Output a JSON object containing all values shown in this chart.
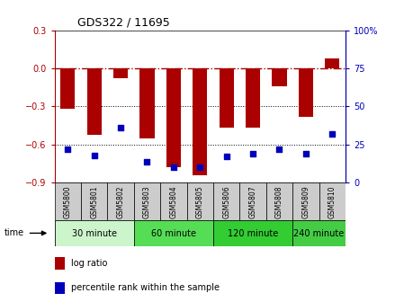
{
  "title": "GDS322 / 11695",
  "samples": [
    "GSM5800",
    "GSM5801",
    "GSM5802",
    "GSM5803",
    "GSM5804",
    "GSM5805",
    "GSM5806",
    "GSM5807",
    "GSM5808",
    "GSM5809",
    "GSM5810"
  ],
  "log_ratio": [
    -0.32,
    -0.52,
    -0.08,
    -0.55,
    -0.78,
    -0.84,
    -0.47,
    -0.47,
    -0.14,
    -0.38,
    0.08
  ],
  "percentile_rank": [
    22,
    18,
    36,
    14,
    10,
    10,
    17,
    19,
    22,
    19,
    32
  ],
  "time_groups": [
    {
      "label": "30 minute",
      "start": 0,
      "end": 2,
      "color": "#ccf5cc"
    },
    {
      "label": "60 minute",
      "start": 3,
      "end": 5,
      "color": "#66dd66"
    },
    {
      "label": "120 minute",
      "start": 6,
      "end": 8,
      "color": "#44cc44"
    },
    {
      "label": "240 minute",
      "start": 9,
      "end": 10,
      "color": "#55dd55"
    }
  ],
  "bar_color": "#aa0000",
  "dot_color": "#0000bb",
  "ylim_left": [
    -0.9,
    0.3
  ],
  "ylim_right": [
    0,
    100
  ],
  "yticks_left": [
    -0.9,
    -0.6,
    -0.3,
    0.0,
    0.3
  ],
  "yticks_right": [
    0,
    25,
    50,
    75,
    100
  ],
  "hline_y": 0.0,
  "dotted_lines": [
    -0.3,
    -0.6
  ],
  "background_color": "#ffffff",
  "gray_box_color": "#cccccc",
  "legend_log_ratio": "log ratio",
  "legend_percentile": "percentile rank within the sample"
}
